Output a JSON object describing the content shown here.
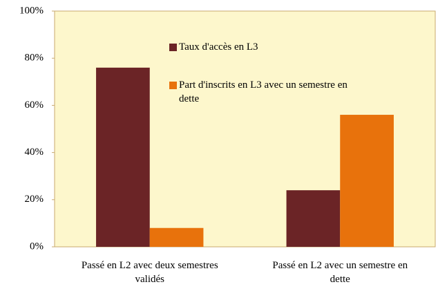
{
  "chart_data": {
    "type": "bar",
    "categories": [
      "Passé en L2 avec deux semestres validés",
      "Passé en L2 avec un semestre en dette"
    ],
    "series": [
      {
        "name": "Taux d'accès en L3",
        "color": "#6b2426",
        "values": [
          76,
          24
        ]
      },
      {
        "name": "Part d'inscrits en L3 avec un semestre en dette",
        "color": "#e8720c",
        "values": [
          8,
          56
        ]
      }
    ],
    "ylim": [
      0,
      100
    ],
    "yticks": [
      {
        "value": 0,
        "label": "0%"
      },
      {
        "value": 20,
        "label": "20%"
      },
      {
        "value": 40,
        "label": "40%"
      },
      {
        "value": 60,
        "label": "60%"
      },
      {
        "value": 80,
        "label": "80%"
      },
      {
        "value": 100,
        "label": "100%"
      }
    ],
    "grid": false
  }
}
